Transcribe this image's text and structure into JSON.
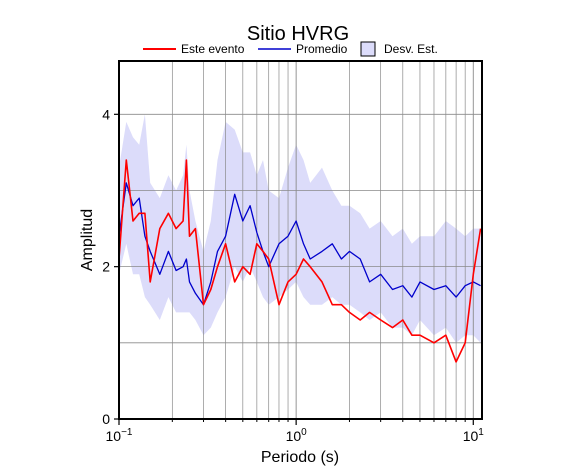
{
  "chart_data": {
    "type": "line",
    "title": "Sitio HVRG",
    "xlabel": "Periodo (s)",
    "ylabel": "Amplitud",
    "xscale": "log",
    "xlim": [
      0.1,
      11.2
    ],
    "ylim": [
      0,
      4.7
    ],
    "grid": true,
    "legend_position": "top",
    "x_ticks": [
      {
        "value": 0.1,
        "base": "10",
        "exp": "−1"
      },
      {
        "value": 1,
        "base": "10",
        "exp": "0"
      },
      {
        "value": 10,
        "base": "10",
        "exp": "1"
      }
    ],
    "y_ticks": [
      {
        "value": 0,
        "label": "0"
      },
      {
        "value": 2,
        "label": "2"
      },
      {
        "value": 4,
        "label": "4"
      }
    ],
    "legend": {
      "event": "Este evento",
      "average": "Promedio",
      "std": "Desv. Est."
    },
    "colors": {
      "event": "#ff0000",
      "average": "#0000cc",
      "std_fill": "#dcdcfa"
    },
    "x": [
      0.1,
      0.11,
      0.12,
      0.13,
      0.14,
      0.15,
      0.17,
      0.19,
      0.21,
      0.23,
      0.24,
      0.25,
      0.27,
      0.3,
      0.33,
      0.36,
      0.4,
      0.45,
      0.5,
      0.55,
      0.6,
      0.65,
      0.7,
      0.8,
      0.9,
      1.0,
      1.1,
      1.2,
      1.4,
      1.6,
      1.8,
      2.0,
      2.3,
      2.6,
      3.0,
      3.5,
      4.0,
      4.5,
      5.0,
      6.0,
      7.0,
      8.0,
      9.0,
      10.0,
      11.0
    ],
    "series": [
      {
        "key": "event",
        "name": "Este evento",
        "values": [
          2.1,
          3.4,
          2.6,
          2.7,
          2.7,
          1.8,
          2.5,
          2.7,
          2.5,
          2.6,
          3.4,
          2.4,
          2.5,
          1.5,
          1.7,
          2.0,
          2.3,
          1.8,
          2.0,
          1.9,
          2.3,
          2.2,
          2.1,
          1.5,
          1.8,
          1.9,
          2.1,
          2.0,
          1.8,
          1.5,
          1.5,
          1.4,
          1.3,
          1.4,
          1.3,
          1.2,
          1.3,
          1.1,
          1.1,
          1.0,
          1.1,
          0.75,
          1.0,
          1.9,
          2.5
        ]
      },
      {
        "key": "average",
        "name": "Promedio",
        "values": [
          2.4,
          3.1,
          2.8,
          2.9,
          2.4,
          2.2,
          1.9,
          2.2,
          1.95,
          2.0,
          2.1,
          1.8,
          1.65,
          1.5,
          1.8,
          2.2,
          2.4,
          2.95,
          2.6,
          2.8,
          2.45,
          2.2,
          2.0,
          2.3,
          2.4,
          2.6,
          2.3,
          2.1,
          2.2,
          2.3,
          2.1,
          2.2,
          2.1,
          1.8,
          1.9,
          1.7,
          1.75,
          1.6,
          1.8,
          1.7,
          1.75,
          1.6,
          1.75,
          1.8,
          1.75
        ]
      },
      {
        "key": "std_upper",
        "name": "Desv. Est.",
        "values": [
          3.3,
          3.9,
          3.7,
          3.6,
          4.0,
          3.1,
          2.9,
          3.2,
          3.0,
          3.2,
          3.6,
          3.0,
          2.6,
          2.2,
          2.6,
          3.4,
          3.9,
          3.8,
          3.5,
          3.5,
          3.2,
          3.4,
          3.0,
          2.9,
          3.3,
          3.6,
          3.4,
          3.1,
          3.3,
          3.0,
          2.8,
          2.8,
          2.7,
          2.5,
          2.6,
          2.4,
          2.5,
          2.3,
          2.4,
          2.4,
          2.6,
          2.5,
          2.4,
          2.5,
          2.5
        ]
      },
      {
        "key": "std_lower",
        "name": "",
        "values": [
          1.9,
          2.3,
          1.9,
          1.9,
          1.6,
          1.5,
          1.3,
          1.6,
          1.4,
          1.4,
          1.4,
          1.4,
          1.3,
          1.1,
          1.2,
          1.4,
          1.6,
          2.0,
          1.8,
          2.0,
          1.8,
          1.6,
          1.5,
          1.6,
          1.7,
          1.8,
          1.6,
          1.5,
          1.5,
          1.6,
          1.5,
          1.5,
          1.4,
          1.3,
          1.4,
          1.2,
          1.2,
          1.1,
          1.3,
          1.1,
          1.2,
          1.0,
          1.1,
          1.1,
          1.0
        ]
      }
    ]
  }
}
